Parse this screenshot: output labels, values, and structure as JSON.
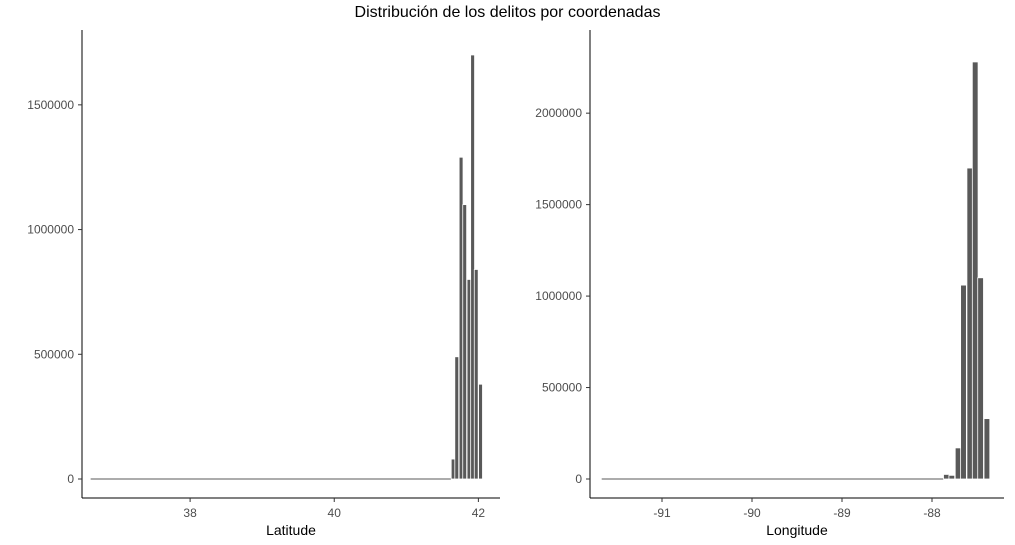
{
  "figure_title": "Distribución de los delitos por coordenadas",
  "chart_data": [
    {
      "type": "bar",
      "xlabel": "Latitude",
      "ylabel": "",
      "xlim": [
        36.5,
        42.3
      ],
      "ylim": [
        0,
        1760000
      ],
      "x_ticks": [
        38,
        40,
        42
      ],
      "y_ticks": [
        0,
        500000,
        1000000,
        1500000
      ],
      "x_tick_labels": [
        "38",
        "40",
        "42"
      ],
      "y_tick_labels": [
        "0",
        "500000",
        "1000000",
        "1500000"
      ],
      "bin_width": 0.054,
      "baseline_range": [
        36.62,
        41.62
      ],
      "bins": [
        {
          "x": 41.65,
          "value": 80000
        },
        {
          "x": 41.7,
          "value": 490000
        },
        {
          "x": 41.76,
          "value": 1290000
        },
        {
          "x": 41.81,
          "value": 1100000
        },
        {
          "x": 41.87,
          "value": 800000
        },
        {
          "x": 41.92,
          "value": 1700000
        },
        {
          "x": 41.97,
          "value": 840000
        },
        {
          "x": 42.03,
          "value": 380000
        }
      ],
      "bar_color": "#595959",
      "grid": false
    },
    {
      "type": "bar",
      "xlabel": "Longitude",
      "ylabel": "",
      "xlim": [
        -91.8,
        -87.2
      ],
      "ylim": [
        0,
        2400000
      ],
      "x_ticks": [
        -91,
        -90,
        -89,
        -88
      ],
      "y_ticks": [
        0,
        500000,
        1000000,
        1500000,
        2000000
      ],
      "x_tick_labels": [
        "-91",
        "-90",
        "-89",
        "-88"
      ],
      "y_tick_labels": [
        "0",
        "500000",
        "1000000",
        "1500000",
        "2000000"
      ],
      "bin_width": 0.064,
      "baseline_range": [
        -91.67,
        -87.87
      ],
      "bins": [
        {
          "x": -87.84,
          "value": 25000
        },
        {
          "x": -87.78,
          "value": 20000
        },
        {
          "x": -87.71,
          "value": 170000
        },
        {
          "x": -87.65,
          "value": 1060000
        },
        {
          "x": -87.58,
          "value": 1700000
        },
        {
          "x": -87.52,
          "value": 2280000
        },
        {
          "x": -87.46,
          "value": 1100000
        },
        {
          "x": -87.39,
          "value": 330000
        }
      ],
      "bar_color": "#595959",
      "grid": false
    }
  ]
}
